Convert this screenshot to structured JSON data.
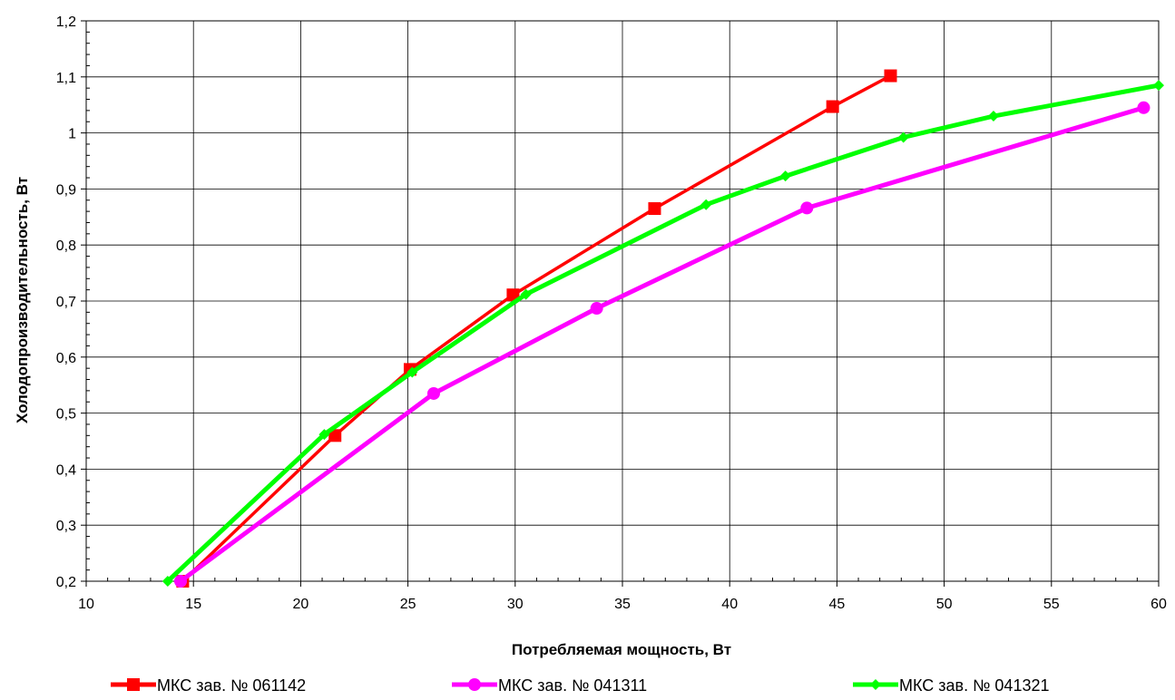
{
  "chart_data": {
    "type": "line",
    "title": "",
    "xlabel": "Потребляемая мощность, Вт",
    "ylabel": "Холодопроизводительность, Вт",
    "xlim": [
      10,
      60
    ],
    "ylim": [
      0.2,
      1.2
    ],
    "x_ticks": [
      "10",
      "15",
      "20",
      "25",
      "30",
      "35",
      "40",
      "45",
      "50",
      "55",
      "60"
    ],
    "y_ticks": [
      "0,2",
      "0,3",
      "0,4",
      "0,5",
      "0,6",
      "0,7",
      "0,8",
      "0,9",
      "1",
      "1,1",
      "1,2"
    ],
    "grid": true,
    "legend_position": "bottom",
    "series": [
      {
        "name": "МКС зав. № 061142",
        "color": "#ff0000",
        "marker": "square",
        "points": [
          [
            14.5,
            0.2
          ],
          [
            21.6,
            0.46
          ],
          [
            25.1,
            0.578
          ],
          [
            29.9,
            0.711
          ],
          [
            36.5,
            0.865
          ],
          [
            44.8,
            1.047
          ],
          [
            47.5,
            1.102
          ]
        ]
      },
      {
        "name": "МКС зав. № 041311",
        "color": "#ff00ff",
        "marker": "circle",
        "points": [
          [
            14.4,
            0.2
          ],
          [
            26.2,
            0.535
          ],
          [
            33.8,
            0.687
          ],
          [
            43.6,
            0.866
          ],
          [
            59.3,
            1.045
          ]
        ]
      },
      {
        "name": "МКС зав. № 041321",
        "color": "#00ff00",
        "marker": "diamond",
        "points": [
          [
            13.8,
            0.2
          ],
          [
            21.1,
            0.462
          ],
          [
            25.2,
            0.573
          ],
          [
            30.5,
            0.712
          ],
          [
            38.9,
            0.872
          ],
          [
            42.6,
            0.923
          ],
          [
            48.1,
            0.992
          ],
          [
            52.3,
            1.03
          ],
          [
            60.0,
            1.085
          ]
        ]
      }
    ]
  }
}
